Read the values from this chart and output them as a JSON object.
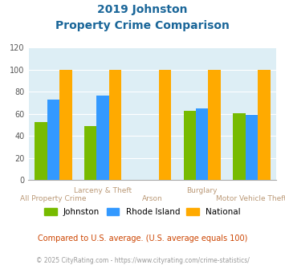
{
  "title_line1": "2019 Johnston",
  "title_line2": "Property Crime Comparison",
  "groups": [
    {
      "name": "All Property Crime",
      "johnston": 53,
      "rhode_island": 73,
      "national": 100
    },
    {
      "name": "Larceny & Theft",
      "johnston": 49,
      "rhode_island": 77,
      "national": 100
    },
    {
      "name": "Arson",
      "johnston": 0,
      "rhode_island": 0,
      "national": 100
    },
    {
      "name": "Burglary",
      "johnston": 63,
      "rhode_island": 65,
      "national": 100
    },
    {
      "name": "Motor Vehicle Theft",
      "johnston": 61,
      "rhode_island": 59,
      "national": 100
    }
  ],
  "color_johnston": "#77bb00",
  "color_rhode_island": "#3399ff",
  "color_national": "#ffaa00",
  "color_title": "#1a6699",
  "color_axis_text": "#bb9977",
  "color_compare_text": "#cc4400",
  "color_footer": "#999999",
  "ylim": [
    0,
    120
  ],
  "yticks": [
    0,
    20,
    40,
    60,
    80,
    100,
    120
  ],
  "bg_color": "#ddeef5",
  "legend_entries": [
    "Johnston",
    "Rhode Island",
    "National"
  ],
  "compare_text": "Compared to U.S. average. (U.S. average equals 100)",
  "footer_text": "© 2025 CityRating.com - https://www.cityrating.com/crime-statistics/",
  "bar_width": 0.25
}
